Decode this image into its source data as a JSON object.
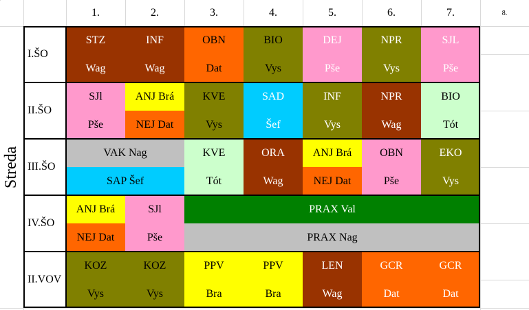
{
  "day": "Streda",
  "periods": [
    "1.",
    "2.",
    "3.",
    "4.",
    "5.",
    "6.",
    "7.",
    "8."
  ],
  "classes": [
    "I.ŠO",
    "II.ŠO",
    "III.ŠO",
    "IV.ŠO",
    "II.VOV"
  ],
  "colors": {
    "brown": "#993300",
    "olive": "#808000",
    "orange": "#ff6600",
    "pink": "#ff99cc",
    "yellow": "#ffff00",
    "cyan": "#00ccff",
    "lightgreen": "#ccffcc",
    "gray": "#c0c0c0",
    "green": "#008000"
  },
  "lessons": {
    "r1": [
      {
        "subject": "STZ",
        "teacher": "Wag"
      },
      {
        "subject": "INF",
        "teacher": "Wag"
      },
      {
        "subject": "OBN",
        "teacher": "Dat"
      },
      {
        "subject": "BIO",
        "teacher": "Vys"
      },
      {
        "subject": "DEJ",
        "teacher": "Pše"
      },
      {
        "subject": "NPR",
        "teacher": "Vys"
      },
      {
        "subject": "SJL",
        "teacher": "Pše"
      }
    ],
    "r2": {
      "p1": {
        "subject": "SJl",
        "teacher": "Pše"
      },
      "p2a": "ANJ Brá",
      "p2b": "NEJ Dat",
      "p3": {
        "subject": "KVE",
        "teacher": "Vys"
      },
      "p4": {
        "subject": "SAD",
        "teacher": "Šef"
      },
      "p5": {
        "subject": "INF",
        "teacher": "Vys"
      },
      "p6": {
        "subject": "NPR",
        "teacher": "Wag"
      },
      "p7": {
        "subject": "BIO",
        "teacher": "Tót"
      }
    },
    "r3": {
      "p12a": "VAK Nag",
      "p12b": "SAP Šef",
      "p3": {
        "subject": "KVE",
        "teacher": "Tót"
      },
      "p4": {
        "subject": "ORA",
        "teacher": "Wag"
      },
      "p5a": "ANJ Brá",
      "p5b": "NEJ Dat",
      "p6": {
        "subject": "OBN",
        "teacher": "Pše"
      },
      "p7": {
        "subject": "EKO",
        "teacher": "Vys"
      }
    },
    "r4": {
      "p1a": "ANJ Brá",
      "p1b": "NEJ Dat",
      "p2": {
        "subject": "SJl",
        "teacher": "Pše"
      },
      "prax1": "PRAX Val",
      "prax2": "PRAX Nag"
    },
    "r5": [
      {
        "subject": "KOZ",
        "teacher": "Vys"
      },
      {
        "subject": "KOZ",
        "teacher": "Vys"
      },
      {
        "subject": "PPV",
        "teacher": "Bra"
      },
      {
        "subject": "PPV",
        "teacher": "Bra"
      },
      {
        "subject": "LEN",
        "teacher": "Wag"
      },
      {
        "subject": "GCR",
        "teacher": "Dat"
      },
      {
        "subject": "GCR",
        "teacher": "Dat"
      }
    ]
  }
}
